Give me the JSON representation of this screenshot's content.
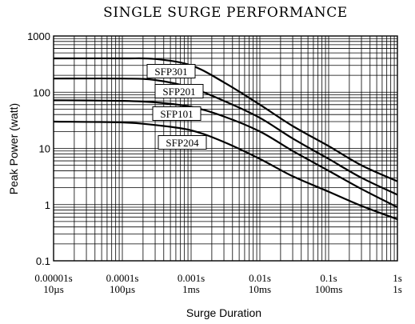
{
  "chart_data": {
    "type": "line",
    "title": "SINGLE SURGE PERFORMANCE",
    "xlabel": "Surge Duration",
    "ylabel": "Peak Power (watt)",
    "x_scale": "log",
    "y_scale": "log",
    "xlim_seconds": [
      1e-05,
      1
    ],
    "ylim": [
      0.1,
      1000
    ],
    "grid": true,
    "legend": "inline labels",
    "x_ticks": [
      {
        "value": 1e-05,
        "line1": "0.00001s",
        "line2": "10µs"
      },
      {
        "value": 0.0001,
        "line1": "0.0001s",
        "line2": "100µs"
      },
      {
        "value": 0.001,
        "line1": "0.001s",
        "line2": "1ms"
      },
      {
        "value": 0.01,
        "line1": "0.01s",
        "line2": "10ms"
      },
      {
        "value": 0.1,
        "line1": "0.1s",
        "line2": "100ms"
      },
      {
        "value": 1,
        "line1": "1s",
        "line2": "1s"
      }
    ],
    "y_ticks": [
      {
        "value": 1000,
        "label": "1000"
      },
      {
        "value": 100,
        "label": "100"
      },
      {
        "value": 10,
        "label": "10"
      },
      {
        "value": 1,
        "label": "1"
      },
      {
        "value": 0.1,
        "label": "0.1"
      }
    ],
    "series": [
      {
        "name": "SFP301",
        "x": [
          1e-05,
          0.0001,
          0.0003,
          0.001,
          0.003,
          0.01,
          0.03,
          0.1,
          0.3,
          1
        ],
        "y": [
          400,
          400,
          390,
          300,
          150,
          60,
          25,
          11,
          5,
          2.6
        ]
      },
      {
        "name": "SFP201",
        "x": [
          1e-05,
          0.0001,
          0.0003,
          0.001,
          0.003,
          0.01,
          0.03,
          0.1,
          0.3,
          1
        ],
        "y": [
          175,
          175,
          165,
          120,
          70,
          35,
          15,
          6.5,
          3,
          1.5
        ]
      },
      {
        "name": "SFP101",
        "x": [
          1e-05,
          0.0001,
          0.0003,
          0.001,
          0.003,
          0.01,
          0.03,
          0.1,
          0.3,
          1
        ],
        "y": [
          72,
          70,
          66,
          55,
          37,
          20,
          9,
          4,
          1.9,
          0.9
        ]
      },
      {
        "name": "SFP204",
        "x": [
          1e-05,
          0.0001,
          0.0003,
          0.001,
          0.003,
          0.01,
          0.03,
          0.1,
          0.3,
          1
        ],
        "y": [
          30,
          29,
          26,
          21,
          13,
          6.5,
          3.2,
          1.7,
          0.95,
          0.55
        ]
      }
    ]
  }
}
